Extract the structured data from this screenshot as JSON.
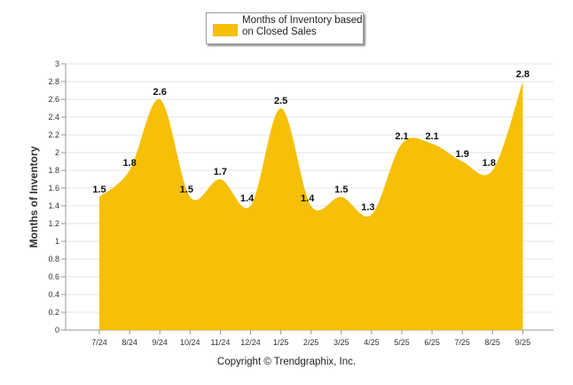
{
  "legend": {
    "label": "Months of Inventory based on Closed Sales",
    "color": "#F5C007"
  },
  "copyright": "Copyright © Trendgraphix, Inc.",
  "chart_data": {
    "type": "area",
    "title": "",
    "xlabel": "",
    "ylabel": "Months of Inventory",
    "ylim": [
      0,
      3
    ],
    "yticks": [
      "0",
      "0.2",
      "0.4",
      "0.6",
      "0.8",
      "1",
      "1.2",
      "1.4",
      "1.6",
      "1.8",
      "2",
      "2.2",
      "2.4",
      "2.6",
      "2.8",
      "3"
    ],
    "grid": true,
    "legend_position": "top-center",
    "categories": [
      "7/24",
      "8/24",
      "9/24",
      "10/24",
      "11/24",
      "12/24",
      "1/25",
      "2/25",
      "3/25",
      "4/25",
      "5/25",
      "6/25",
      "7/25",
      "8/25",
      "9/25"
    ],
    "series": [
      {
        "name": "Months of Inventory based on Closed Sales",
        "values": [
          1.5,
          1.8,
          2.6,
          1.5,
          1.7,
          1.4,
          2.5,
          1.4,
          1.5,
          1.3,
          2.1,
          2.1,
          1.9,
          1.8,
          2.8
        ],
        "labels": [
          "1.5",
          "1.8",
          "2.6",
          "1.5",
          "1.7",
          "1.4",
          "2.5",
          "1.4",
          "1.5",
          "1.3",
          "2.1",
          "2.1",
          "1.9",
          "1.8",
          "2.8"
        ],
        "color": "#F5C007"
      }
    ]
  }
}
